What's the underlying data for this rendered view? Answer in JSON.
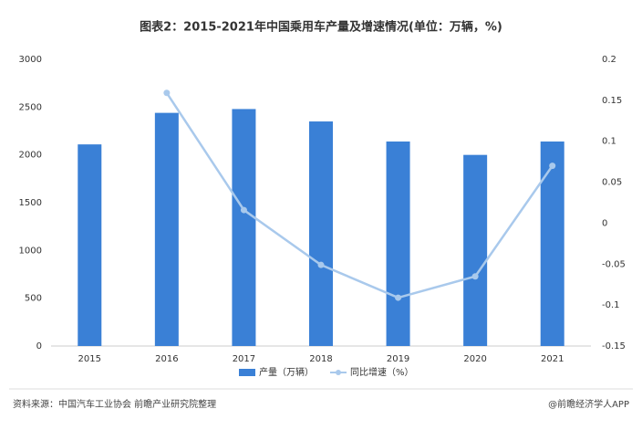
{
  "chart_data": {
    "type": "bar",
    "title": "图表2：2015-2021年中国乘用车产量及增速情况(单位：万辆，%)",
    "categories": [
      "2015",
      "2016",
      "2017",
      "2018",
      "2019",
      "2020",
      "2021"
    ],
    "series": [
      {
        "name": "产量（万辆）",
        "type": "bar",
        "color": "#3a80d6",
        "values": [
          2110,
          2440,
          2480,
          2350,
          2140,
          2000,
          2140
        ]
      },
      {
        "name": "同比增速（%）",
        "type": "line",
        "axis": "y2",
        "color": "#a9c9ec",
        "values": [
          null,
          0.159,
          0.016,
          -0.051,
          -0.091,
          -0.065,
          0.07
        ]
      }
    ],
    "ylim": [
      0,
      3000
    ],
    "yticks": [
      0,
      500,
      1000,
      1500,
      2000,
      2500,
      3000
    ],
    "y2lim": [
      -0.15,
      0.2
    ],
    "y2ticks": [
      -0.15,
      -0.1,
      -0.05,
      0,
      0.05,
      0.1,
      0.15,
      0.2
    ],
    "legend": "bottom",
    "source": "资料来源：中国汽车工业协会 前瞻产业研究院整理",
    "credit": "@前瞻经济学人APP"
  }
}
